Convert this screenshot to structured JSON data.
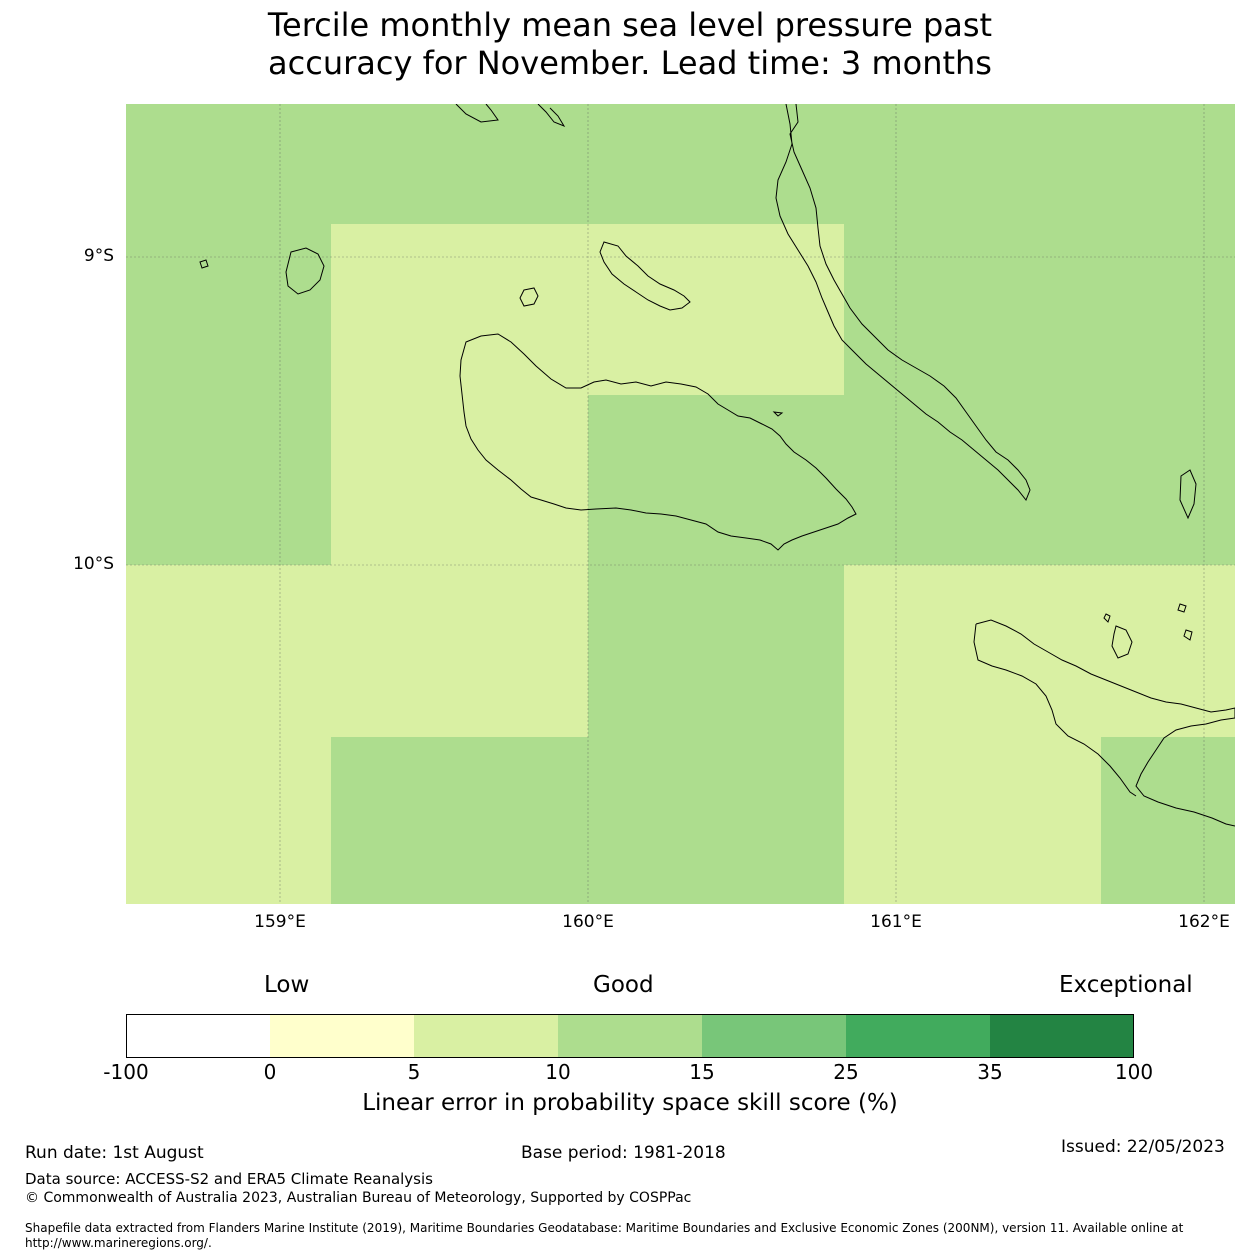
{
  "title_line1": "Tercile monthly mean sea level pressure past",
  "title_line2": "accuracy for November. Lead time: 3 months",
  "map": {
    "lat_labels": [
      "9°S",
      "10°S"
    ],
    "lon_labels": [
      "159°E",
      "160°E",
      "161°E",
      "162°E"
    ]
  },
  "colorbar": {
    "words": [
      "Low",
      "Good",
      "Exceptional"
    ],
    "ticks": [
      "-100",
      "0",
      "5",
      "10",
      "15",
      "25",
      "35",
      "100"
    ],
    "colors": [
      "#ffffff",
      "#ffffcc",
      "#d9f0a3",
      "#addd8e",
      "#78c679",
      "#41ab5d",
      "#238443"
    ],
    "label": "Linear error in probability space skill score (%)"
  },
  "footer": {
    "run_date": "Run date: 1st August",
    "base_period": "Base period: 1981-2018",
    "issued": "Issued: 22/05/2023",
    "data_source": "Data source: ACCESS-S2 and ERA5 Climate Reanalysis",
    "copyright": "© Commonwealth of Australia 2023, Australian Bureau of Meteorology, Supported by COSPPac",
    "shapefile_line1": "Shapefile data extracted from Flanders Marine Institute (2019), Maritime Boundaries Geodatabase: Maritime Boundaries and Exclusive Economic Zones (200NM), version 11. Available online at",
    "shapefile_line2": "http://www.marineregions.org/."
  }
}
